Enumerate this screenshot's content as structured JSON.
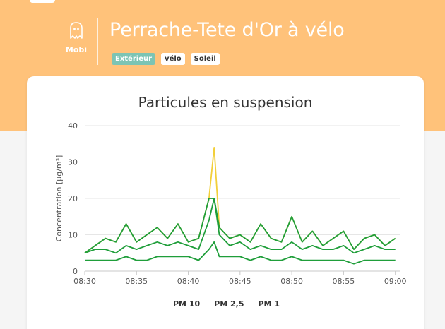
{
  "app": {
    "brand": "Mobi",
    "title": "Perrache-Tete d'Or à vélo",
    "tags": [
      "Extérieur",
      "vélo",
      "Soleil"
    ]
  },
  "colors": {
    "header_bg": "#ffc27a",
    "tag_env_bg": "#7cc4b4",
    "series_green": "#1f9e3a",
    "series_yellow": "#f2cf3a"
  },
  "chart_data": {
    "type": "line",
    "title": "Particules en suspension",
    "ylabel": "Concentration [µg/m³]",
    "xlabel": "",
    "ylim": [
      0,
      40
    ],
    "yticks": [
      "0",
      "10",
      "20",
      "30",
      "40"
    ],
    "xlim_minutes": [
      30,
      60.5
    ],
    "xticks": [
      "08:30",
      "08:35",
      "08:40",
      "08:45",
      "08:50",
      "08:55",
      "09:00"
    ],
    "legend": [
      "PM 10",
      "PM 2,5",
      "PM 1"
    ],
    "legend_position": "bottom",
    "grid": true,
    "series": [
      {
        "name": "PM 10",
        "x": [
          "08:30",
          "08:31",
          "08:32",
          "08:33",
          "08:34",
          "08:35",
          "08:36",
          "08:37",
          "08:38",
          "08:39",
          "08:40",
          "08:41",
          "08:42",
          "08:42:30",
          "08:43",
          "08:44",
          "08:45",
          "08:46",
          "08:47",
          "08:48",
          "08:49",
          "08:50",
          "08:51",
          "08:52",
          "08:53",
          "08:54",
          "08:55",
          "08:56",
          "08:57",
          "08:58",
          "08:59",
          "09:00"
        ],
        "values": [
          5,
          7,
          9,
          8,
          13,
          8,
          10,
          12,
          9,
          13,
          8,
          9,
          20,
          34,
          12,
          9,
          10,
          8,
          13,
          9,
          8,
          15,
          8,
          11,
          7,
          9,
          11,
          6,
          9,
          10,
          7,
          9
        ]
      },
      {
        "name": "PM 2,5",
        "x": [
          "08:30",
          "08:31",
          "08:32",
          "08:33",
          "08:34",
          "08:35",
          "08:36",
          "08:37",
          "08:38",
          "08:39",
          "08:40",
          "08:41",
          "08:42",
          "08:42:30",
          "08:43",
          "08:44",
          "08:45",
          "08:46",
          "08:47",
          "08:48",
          "08:49",
          "08:50",
          "08:51",
          "08:52",
          "08:53",
          "08:54",
          "08:55",
          "08:56",
          "08:57",
          "08:58",
          "08:59",
          "09:00"
        ],
        "values": [
          5,
          6,
          6,
          5,
          7,
          6,
          7,
          8,
          7,
          8,
          7,
          6,
          14,
          20,
          10,
          7,
          8,
          6,
          7,
          6,
          6,
          8,
          6,
          7,
          6,
          6,
          7,
          5,
          6,
          7,
          6,
          6
        ]
      },
      {
        "name": "PM 1",
        "x": [
          "08:30",
          "08:31",
          "08:32",
          "08:33",
          "08:34",
          "08:35",
          "08:36",
          "08:37",
          "08:38",
          "08:39",
          "08:40",
          "08:41",
          "08:42",
          "08:42:30",
          "08:43",
          "08:44",
          "08:45",
          "08:46",
          "08:47",
          "08:48",
          "08:49",
          "08:50",
          "08:51",
          "08:52",
          "08:53",
          "08:54",
          "08:55",
          "08:56",
          "08:57",
          "08:58",
          "08:59",
          "09:00"
        ],
        "values": [
          3,
          3,
          3,
          3,
          4,
          3,
          3,
          4,
          4,
          4,
          4,
          3,
          6,
          8,
          4,
          4,
          4,
          3,
          4,
          3,
          3,
          4,
          3,
          3,
          3,
          3,
          3,
          2,
          3,
          3,
          3,
          3
        ]
      }
    ]
  }
}
